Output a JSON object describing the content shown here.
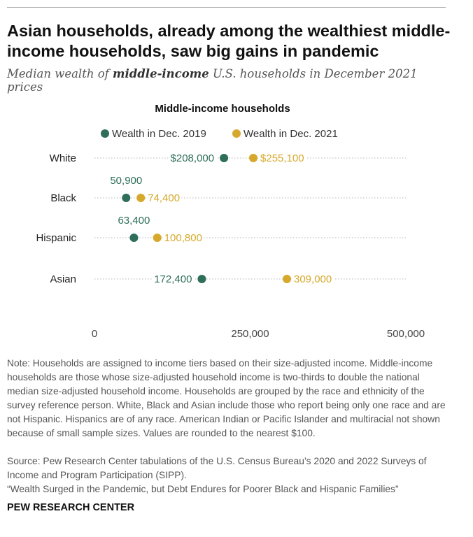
{
  "header": {
    "title": "Asian households, already among the wealthiest middle-income households, saw big gains in pandemic",
    "subtitle_before": "Median wealth of ",
    "subtitle_bold": "middle-income",
    "subtitle_after": " U.S. households in December 2021 prices"
  },
  "colors": {
    "dec2019": "#2e6e5a",
    "dec2021": "#d6a92c",
    "axis_text": "#444444",
    "dotted_line": "#aaaaaa"
  },
  "chart_data": {
    "type": "dot",
    "title": "Middle-income households",
    "categories": [
      "White",
      "Black",
      "Hispanic",
      "Asian"
    ],
    "series": [
      {
        "name": "Wealth in Dec. 2019",
        "values": [
          208000,
          50900,
          63400,
          172400
        ],
        "labels": [
          "$208,000",
          "50,900",
          "63,400",
          "172,400"
        ]
      },
      {
        "name": "Wealth in Dec. 2021",
        "values": [
          255100,
          74400,
          100800,
          309000
        ],
        "labels": [
          "$255,100",
          "74,400",
          "100,800",
          "309,000"
        ]
      }
    ],
    "x_ticks": [
      0,
      250000,
      500000
    ],
    "x_tick_labels": [
      "0",
      "250,000",
      "500,000"
    ],
    "xlim": [
      0,
      500000
    ],
    "legend_position": "top"
  },
  "footer": {
    "note": "Note: Households are assigned to income tiers based on their size-adjusted income. Middle-income households are those whose size-adjusted household income is two-thirds to double the national median size-adjusted household income. Households are grouped by the race and ethnicity of the survey reference person. White, Black and Asian include those who report being only one race and are not Hispanic. Hispanics are of any race. American Indian or Pacific Islander and multiracial not shown because of small sample sizes. Values are rounded to the nearest $100.",
    "source": "Source: Pew Research Center tabulations of the U.S. Census Bureau’s 2020 and 2022 Surveys of Income and Program Participation (SIPP).",
    "report": "“Wealth Surged in the Pandemic, but Debt Endures for Poorer Black and Hispanic Families”",
    "brand": "PEW RESEARCH CENTER"
  }
}
